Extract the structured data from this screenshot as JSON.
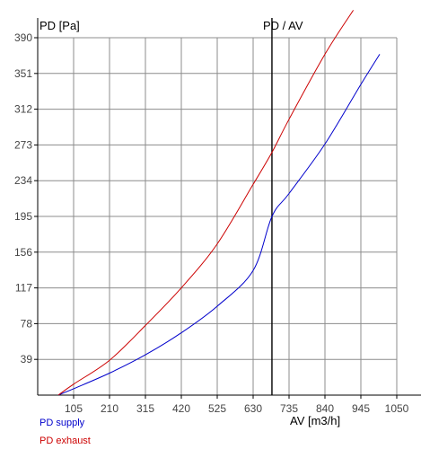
{
  "chart_data": {
    "type": "line",
    "title": "PD / AV",
    "ylabel": "PD [Pa]",
    "xlabel": "AV [m3/h]",
    "xlim": [
      0,
      1050
    ],
    "ylim": [
      0,
      390
    ],
    "x_ticks": [
      105,
      210,
      315,
      420,
      525,
      630,
      735,
      840,
      945,
      1050
    ],
    "y_ticks": [
      39,
      78,
      117,
      156,
      195,
      234,
      273,
      312,
      351,
      390
    ],
    "grid": true,
    "marker_line_x": 685,
    "series": [
      {
        "name": "PD supply",
        "color": "#0000cc",
        "x": [
          60,
          105,
          210,
          315,
          420,
          525,
          630,
          685,
          735,
          840,
          945,
          1000
        ],
        "y": [
          0,
          7,
          24,
          44,
          68,
          97,
          136,
          195,
          220,
          274,
          339,
          372
        ]
      },
      {
        "name": "PD exhaust",
        "color": "#cc0000",
        "x": [
          60,
          105,
          210,
          315,
          420,
          525,
          630,
          685,
          735,
          840,
          923
        ],
        "y": [
          0,
          12,
          38,
          76,
          117,
          165,
          230,
          265,
          301,
          372,
          420
        ]
      }
    ]
  }
}
